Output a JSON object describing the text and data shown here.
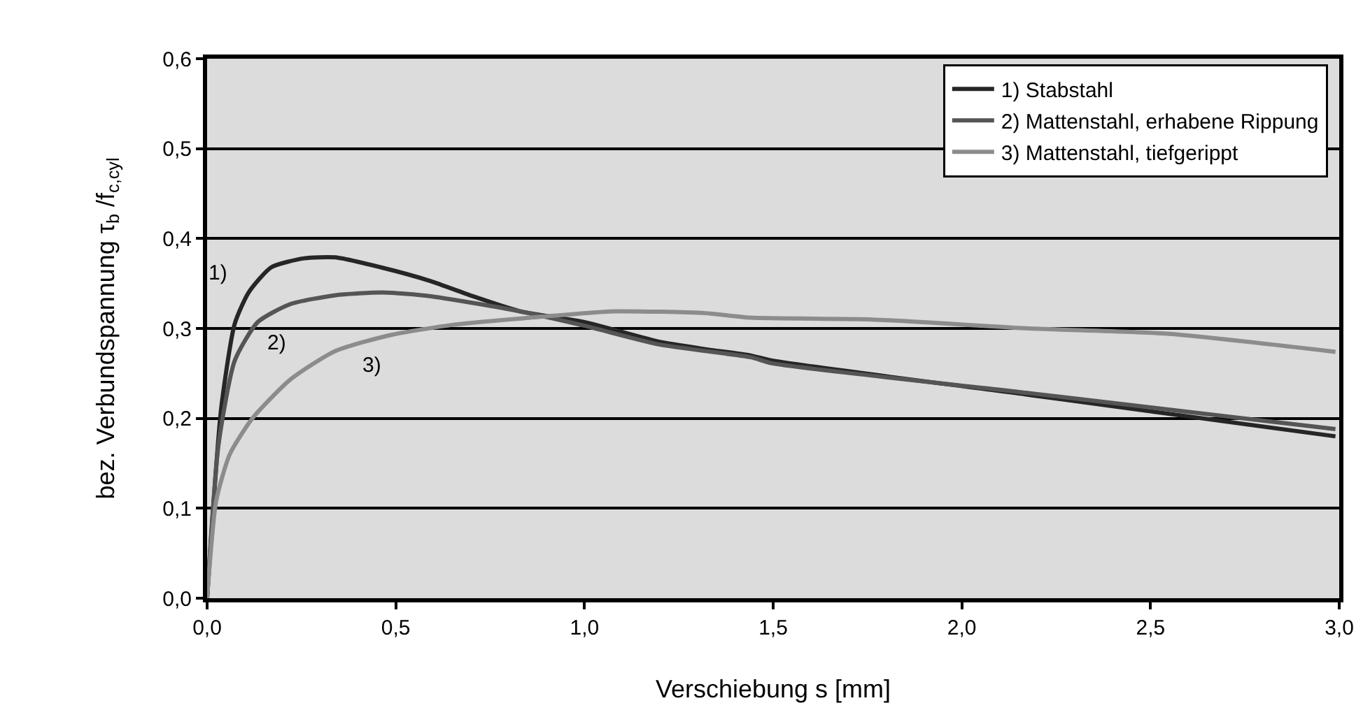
{
  "chart_data": {
    "type": "line",
    "xlabel": "Verschiebung s [mm]",
    "ylabel": "bez. Verbundspannung τ$_{b}$ /f$_{c,cyl}$",
    "xlim": [
      0,
      3
    ],
    "xticks": [
      {
        "value": 0,
        "label": "0,0"
      },
      {
        "value": 0.5,
        "label": "0,5"
      },
      {
        "value": 1,
        "label": "1,0"
      },
      {
        "value": 1.5,
        "label": "1,5"
      },
      {
        "value": 2,
        "label": "2,0"
      },
      {
        "value": 2.5,
        "label": "2,5"
      },
      {
        "value": 3,
        "label": "3,0"
      }
    ],
    "ylim": [
      0,
      0.6
    ],
    "yticks": [
      {
        "value": 0,
        "label": "0,0"
      },
      {
        "value": 0.1,
        "label": "0,1"
      },
      {
        "value": 0.2,
        "label": "0,2"
      },
      {
        "value": 0.3,
        "label": "0,3"
      },
      {
        "value": 0.4,
        "label": "0,4"
      },
      {
        "value": 0.5,
        "label": "0,5"
      },
      {
        "value": 0.6,
        "label": "0,6"
      }
    ],
    "grid": "y",
    "legend": "top right",
    "marker": "none",
    "line_style": "solid",
    "series": [
      {
        "name": "1) Stabstahl",
        "color": "#262626",
        "x": [
          0,
          0.037,
          0.073,
          0.11,
          0.17,
          0.257,
          0.34,
          0.46,
          0.59,
          0.71,
          0.83,
          1.0,
          1.2,
          1.32,
          1.44,
          1.5,
          2.18,
          2.99
        ],
        "values": [
          0,
          0.21,
          0.305,
          0.34,
          0.368,
          0.378,
          0.379,
          0.368,
          0.353,
          0.335,
          0.319,
          0.307,
          0.285,
          0.277,
          0.27,
          0.264,
          0.226,
          0.18
        ]
      },
      {
        "name": "2) Mattenstahl, erhabene Rippung",
        "color": "#555555",
        "x": [
          0,
          0.03,
          0.073,
          0.134,
          0.22,
          0.34,
          0.465,
          0.59,
          0.71,
          0.83,
          1.0,
          1.2,
          1.44,
          1.5,
          2.18,
          2.99
        ],
        "values": [
          0,
          0.17,
          0.264,
          0.307,
          0.327,
          0.337,
          0.34,
          0.336,
          0.328,
          0.319,
          0.303,
          0.282,
          0.268,
          0.261,
          0.228,
          0.188
        ]
      },
      {
        "name": "3) Mattenstahl, tiefgerippt",
        "color": "#8c8c8c",
        "x": [
          0,
          0.024,
          0.06,
          0.12,
          0.22,
          0.34,
          0.49,
          0.65,
          0.83,
          1.08,
          1.32,
          1.44,
          1.76,
          2.18,
          2.55,
          2.99
        ],
        "values": [
          0,
          0.108,
          0.16,
          0.2,
          0.243,
          0.275,
          0.293,
          0.304,
          0.311,
          0.319,
          0.317,
          0.312,
          0.31,
          0.3,
          0.294,
          0.274
        ]
      }
    ],
    "annotations": [
      "1)",
      "2)",
      "3)"
    ]
  }
}
